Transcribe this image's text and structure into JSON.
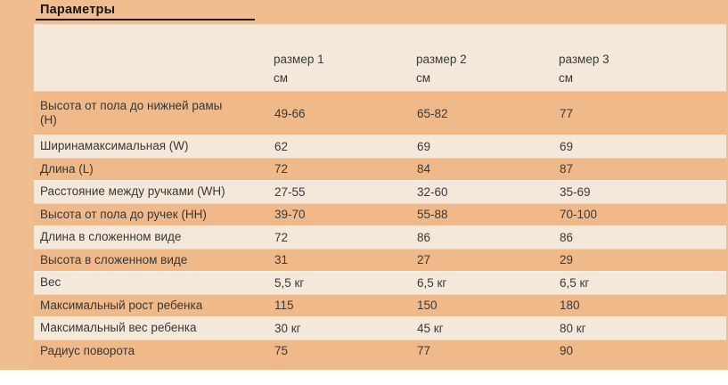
{
  "title": "Параметры",
  "table": {
    "col_headers": [
      {
        "line1": "размер 1",
        "line2": "см"
      },
      {
        "line1": "размер 2",
        "line2": "см"
      },
      {
        "line1": "размер 3",
        "line2": "см"
      }
    ],
    "rows": [
      {
        "label": "Высота от пола до нижней рамы (H)",
        "values": [
          "49-66",
          "65-82",
          "77"
        ]
      },
      {
        "label": "Ширинамаксимальная (W)",
        "values": [
          "62",
          "69",
          "69"
        ]
      },
      {
        "label": "Длина (L)",
        "values": [
          "72",
          "84",
          "87"
        ]
      },
      {
        "label": "Расстояние между ручками (WH)",
        "values": [
          "27-55",
          "32-60",
          "35-69"
        ]
      },
      {
        "label": "Высота от пола до ручек (HH)",
        "values": [
          "39-70",
          "55-88",
          "70-100"
        ]
      },
      {
        "label": "Длина в сложенном виде",
        "values": [
          "72",
          "86",
          "86"
        ]
      },
      {
        "label": "Высота в сложенном виде",
        "values": [
          "31",
          "27",
          "29"
        ]
      },
      {
        "label": "Вес",
        "values": [
          "5,5 кг",
          "6,5 кг",
          "6,5 кг"
        ]
      },
      {
        "label": "Максимальный рост ребенка",
        "values": [
          "115",
          "150",
          "180"
        ]
      },
      {
        "label": "Максимальный вес ребенка",
        "values": [
          "30 кг",
          "45 кг",
          "80 кг"
        ]
      },
      {
        "label": "Радиус поворота",
        "values": [
          "75",
          "77",
          "90"
        ]
      }
    ]
  },
  "colors": {
    "page_background": "#f0bd8f",
    "row_orange": "#efb98a",
    "row_cream": "#f4e8da",
    "text": "#3a3a3a",
    "title_text": "#161616",
    "underline": "#1c1c1c"
  }
}
